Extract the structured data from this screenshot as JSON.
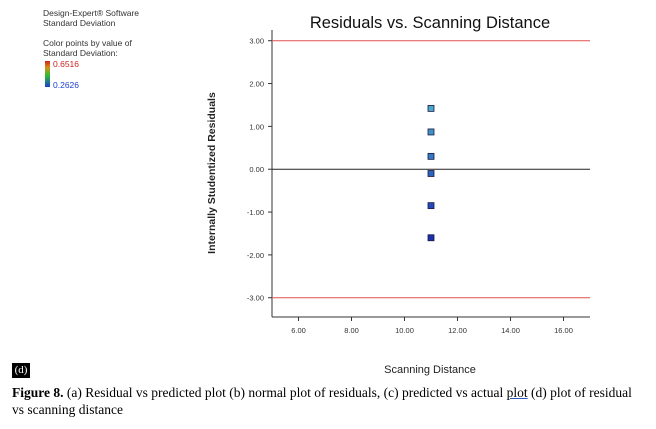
{
  "sidebar": {
    "software": "Design-Expert® Software",
    "response": "Standard Deviation",
    "color_label_1": "Color points by value of",
    "color_label_2": "Standard Deviation:",
    "color_max": "0.6516",
    "color_min": "0.2626"
  },
  "panel_label": "(d)",
  "caption": {
    "figure_no": "Figure 8.",
    "text_a": " (a) Residual vs predicted plot (b) normal plot of residuals, (c) predicted vs actual ",
    "text_plot": "plot",
    "text_b": " (d) plot of residual vs scanning distance"
  },
  "chart_data": {
    "type": "scatter",
    "title": "Residuals vs. Scanning Distance",
    "xlabel": "Scanning Distance",
    "ylabel": "Internally Studentized Residuals",
    "xlim": [
      5,
      17
    ],
    "ylim": [
      -3.45,
      3.25
    ],
    "x_ticks": [
      "6.00",
      "8.00",
      "10.00",
      "12.00",
      "14.00",
      "16.00"
    ],
    "x_tick_values": [
      6,
      8,
      10,
      12,
      14,
      16
    ],
    "y_ticks": [
      "3.00",
      "2.00",
      "1.00",
      "0.00",
      "-1.00",
      "-2.00",
      "-3.00"
    ],
    "y_tick_values": [
      3,
      2,
      1,
      0,
      -1,
      -2,
      -3
    ],
    "limit_lines": [
      3.0,
      -3.0
    ],
    "limit_color": "#e05050",
    "zero_line": 0,
    "grid": false,
    "points": [
      {
        "x": 11,
        "y": 1.42,
        "color": "#4aa8c8"
      },
      {
        "x": 11,
        "y": 0.87,
        "color": "#3f92c4"
      },
      {
        "x": 11,
        "y": 0.3,
        "color": "#3579c0"
      },
      {
        "x": 11,
        "y": -0.1,
        "color": "#2b63bc"
      },
      {
        "x": 11,
        "y": -0.85,
        "color": "#2249b4"
      },
      {
        "x": 11,
        "y": -1.6,
        "color": "#1a2fa8"
      }
    ]
  }
}
